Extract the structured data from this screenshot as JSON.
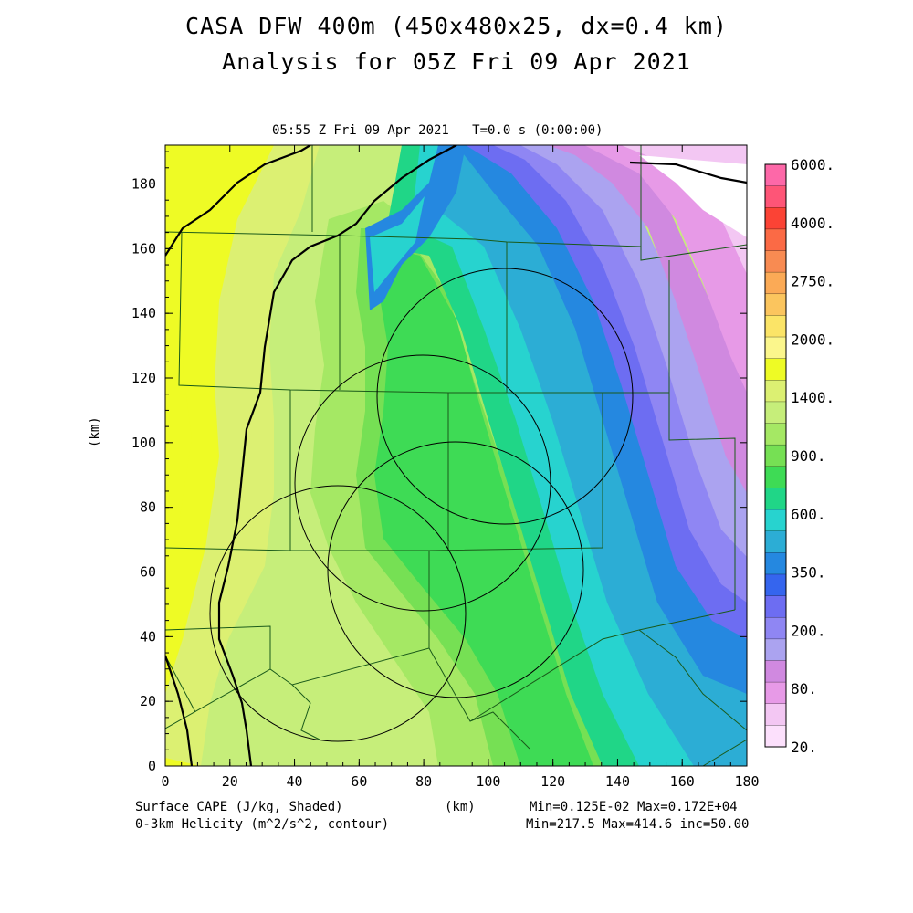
{
  "title_line1": "CASA DFW 400m (450x480x25, dx=0.4 km)",
  "title_line2": "Analysis for 05Z Fri 09 Apr 2021",
  "plot_header": "05:55 Z Fri 09 Apr 2021   T=0.0 s (0:00:00)",
  "x_unit": "(km)",
  "y_unit": "(km)",
  "footer_left_1": "Surface CAPE (J/kg, Shaded)",
  "footer_left_2": "0-3km Helicity (m^2/s^2, contour)",
  "footer_right_1": "Min=0.125E-02 Max=0.172E+04",
  "footer_right_2": "Min=217.5 Max=414.6 inc=50.00",
  "x_ticks": [
    "0",
    "20",
    "40",
    "60",
    "80",
    "100",
    "120",
    "140",
    "160",
    "180"
  ],
  "y_ticks": [
    "0",
    "20",
    "40",
    "60",
    "80",
    "100",
    "120",
    "140",
    "160",
    "180"
  ],
  "colorbar_labels": [
    "6000.",
    "4000.",
    "2750.",
    "2000.",
    "1400.",
    "900.",
    "600.",
    "350.",
    "200.",
    "80.",
    "20."
  ],
  "colorbar_colors": [
    "#fd68a8",
    "#fe5577",
    "#fb4335",
    "#fb6a45",
    "#f88b52",
    "#fbaa56",
    "#fbc55e",
    "#fbe467",
    "#fbf68c",
    "#eefb25",
    "#dcf072",
    "#c6ee7a",
    "#a5e864",
    "#76e054",
    "#3edb55",
    "#20d687",
    "#27d3cf",
    "#2cadd5",
    "#2588e0",
    "#3565ee",
    "#6d6df2",
    "#8f86f3",
    "#aba3f0",
    "#d089e0",
    "#e79ae7",
    "#f3c7f3",
    "#fce0fc"
  ]
}
